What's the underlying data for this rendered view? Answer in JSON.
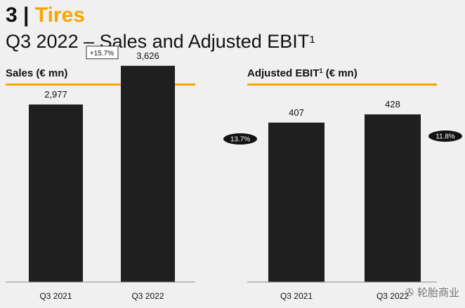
{
  "slide": {
    "section_number": "3",
    "separator": "|",
    "section_name": "Tires",
    "subtitle": "Q3 2022 – Sales and Adjusted EBIT",
    "subtitle_footnote": "1"
  },
  "colors": {
    "accent": "#f7a600",
    "bar": "#1f1f1f",
    "background": "#f0f0f0"
  },
  "chart_data": [
    {
      "type": "bar",
      "title": "Sales (€ mn)",
      "categories": [
        "Q3 2021",
        "Q3 2022"
      ],
      "values": [
        2977,
        3626
      ],
      "value_labels": [
        "2,977",
        "3,626"
      ],
      "annotations": [
        {
          "text": "+15.7%",
          "style": "box",
          "between": [
            "Q3 2021",
            "Q3 2022"
          ]
        }
      ],
      "ylim": [
        0,
        4000
      ],
      "grid": false,
      "legend": "none"
    },
    {
      "type": "bar",
      "title_main": "Adjusted EBIT",
      "title_footnote": "1",
      "title_units": " (€ mn)",
      "categories": [
        "Q3 2021",
        "Q3 2022"
      ],
      "values": [
        407,
        428
      ],
      "value_labels": [
        "407",
        "428"
      ],
      "annotations": [
        {
          "text": "13.7%",
          "style": "pill",
          "category": "Q3 2021"
        },
        {
          "text": "11.8%",
          "style": "pill",
          "category": "Q3 2022"
        }
      ],
      "ylim": [
        0,
        480
      ],
      "grid": false,
      "legend": "none"
    }
  ],
  "watermark": {
    "icon": "wechat-icon",
    "text": "轮胎商业"
  }
}
